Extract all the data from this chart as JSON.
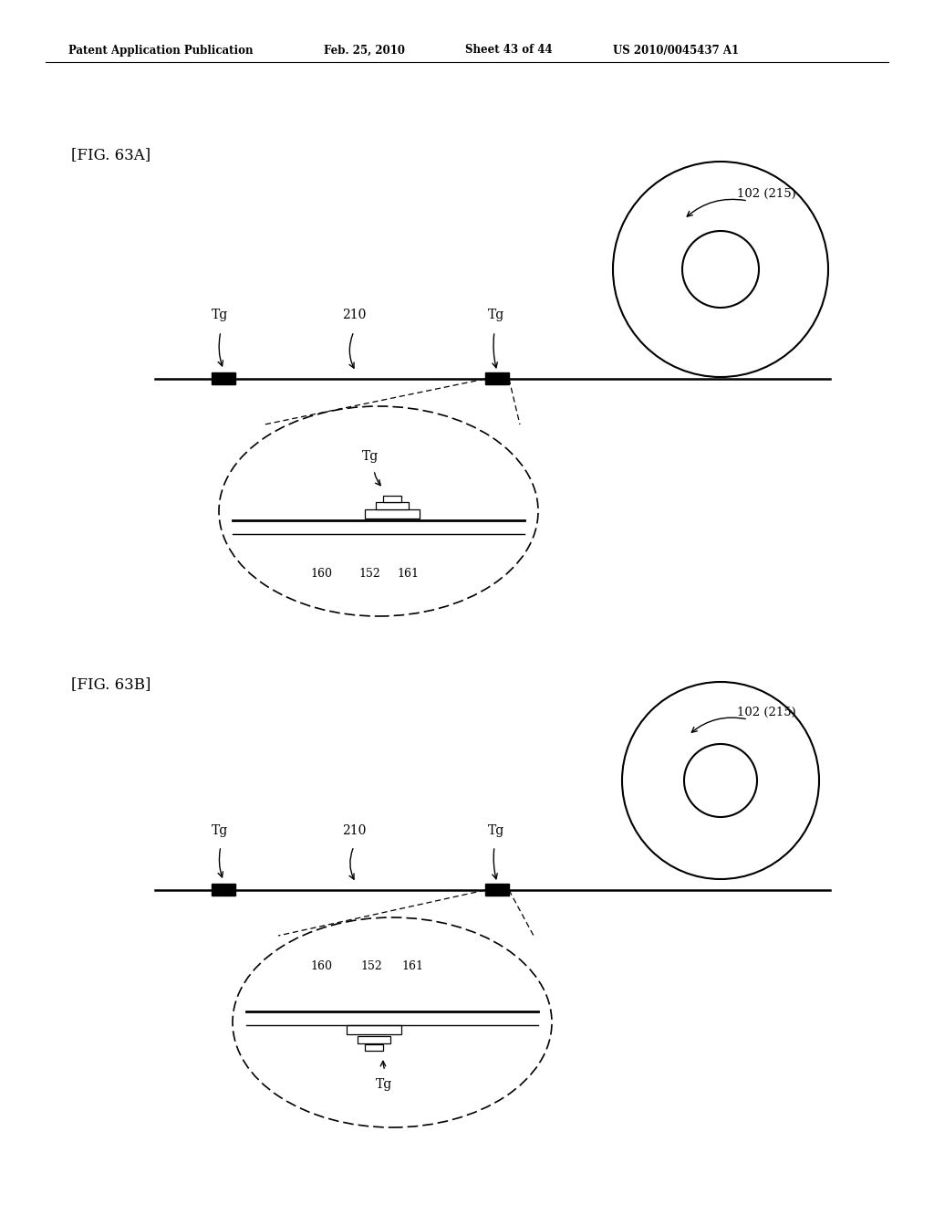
{
  "bg_color": "#ffffff",
  "header_text": "Patent Application Publication",
  "header_date": "Feb. 25, 2010",
  "header_sheet": "Sheet 43 of 44",
  "header_patent": "US 2010/0045437 A1",
  "fig_a_label": "[FIG. 63A]",
  "fig_b_label": "[FIG. 63B]",
  "roll_label": "102 (215)",
  "tape_label": "210",
  "tg_label": "Tg",
  "labels_zoom": [
    "160",
    "152",
    "161"
  ]
}
